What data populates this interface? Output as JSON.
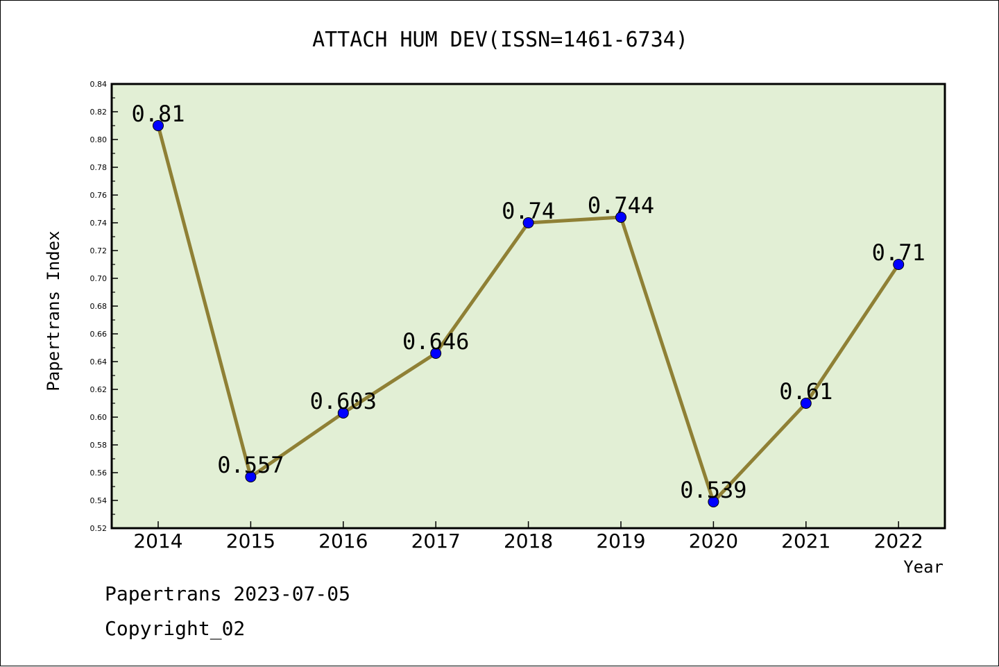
{
  "chart_data": {
    "type": "line",
    "title": "ATTACH HUM DEV(ISSN=1461-6734)",
    "xlabel": "Year",
    "ylabel": "Papertrans Index",
    "categories": [
      "2014",
      "2015",
      "2016",
      "2017",
      "2018",
      "2019",
      "2020",
      "2021",
      "2022"
    ],
    "values": [
      0.81,
      0.557,
      0.603,
      0.646,
      0.74,
      0.744,
      0.539,
      0.61,
      0.71
    ],
    "data_labels": [
      "0.81",
      "0.557",
      "0.603",
      "0.646",
      "0.74",
      "0.744",
      "0.539",
      "0.61",
      "0.71"
    ],
    "ylim": [
      0.52,
      0.84
    ],
    "yticks": [
      "0.52",
      "0.54",
      "0.56",
      "0.58",
      "0.60",
      "0.62",
      "0.64",
      "0.66",
      "0.68",
      "0.70",
      "0.72",
      "0.74",
      "0.76",
      "0.78",
      "0.80",
      "0.82",
      "0.84"
    ],
    "grid": false,
    "colors": {
      "plot_bg": "#e2efd5",
      "line": "#8f8035",
      "marker": "#0000ff"
    }
  },
  "footer": {
    "line1": "Papertrans 2023-07-05",
    "line2": "Copyright_02"
  }
}
